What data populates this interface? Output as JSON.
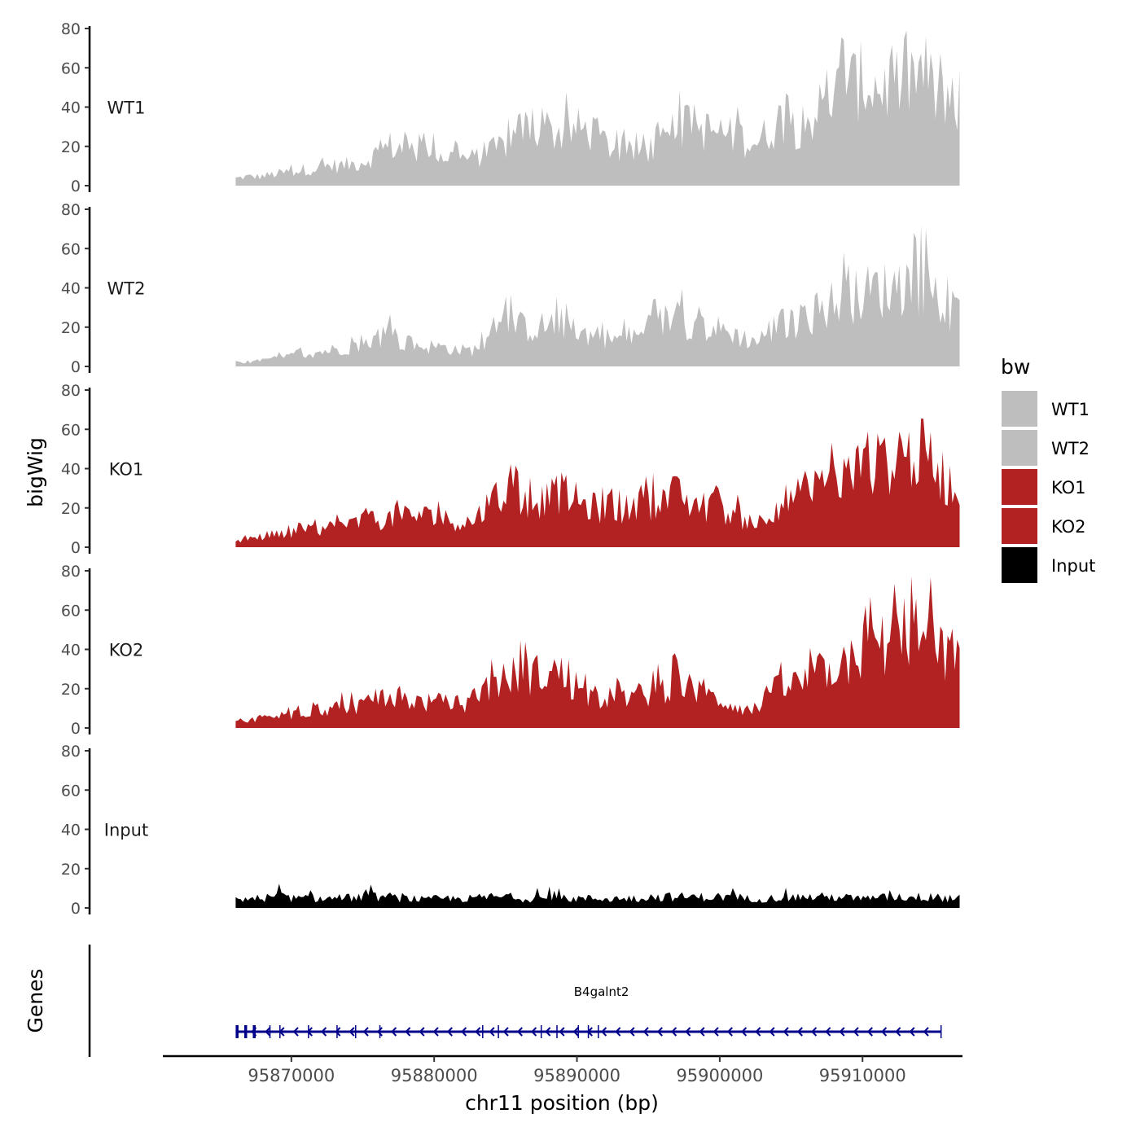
{
  "chart_data": {
    "type": "area",
    "y_title": "bigWig",
    "genes_title": "Genes",
    "x_title": "chr11 position (bp)",
    "x_ticks": [
      95870000,
      95880000,
      95890000,
      95900000,
      95910000
    ],
    "x_tick_labels": [
      "95870000",
      "95880000",
      "95890000",
      "95900000",
      "95910000"
    ],
    "xlim": [
      95861000,
      95917000
    ],
    "data_range": [
      95866100,
      95916800
    ],
    "y_ticks": [
      0,
      20,
      40,
      60,
      80
    ],
    "y_tick_labels": [
      "0",
      "20",
      "40",
      "60",
      "80"
    ],
    "ylim": [
      0,
      80
    ],
    "legend": {
      "title": "bw",
      "items": [
        {
          "label": "WT1",
          "color": "#bebebe"
        },
        {
          "label": "WT2",
          "color": "#bebebe"
        },
        {
          "label": "KO1",
          "color": "#b22222"
        },
        {
          "label": "KO2",
          "color": "#b22222"
        },
        {
          "label": "Input",
          "color": "#000000"
        }
      ]
    },
    "series": [
      {
        "name": "WT1",
        "color": "#bebebe",
        "values": [
          4,
          5,
          5,
          6,
          7,
          8,
          9,
          10,
          11,
          11,
          12,
          14,
          18,
          22,
          20,
          19,
          18,
          17,
          16,
          15,
          15,
          17,
          20,
          24,
          30,
          34,
          30,
          29,
          30,
          31,
          30,
          24,
          20,
          18,
          18,
          20,
          24,
          30,
          33,
          31,
          30,
          29,
          27,
          25,
          24,
          30,
          37,
          33,
          34,
          41,
          47,
          52,
          55,
          58,
          54,
          55,
          57,
          60,
          62,
          50,
          40,
          40
        ]
      },
      {
        "name": "WT2",
        "color": "#bebebe",
        "values": [
          2,
          2,
          3,
          4,
          5,
          6,
          7,
          8,
          9,
          10,
          11,
          12,
          16,
          19,
          13,
          12,
          11,
          11,
          10,
          9,
          9,
          13,
          20,
          24,
          22,
          21,
          22,
          24,
          23,
          19,
          17,
          16,
          15,
          16,
          17,
          21,
          25,
          27,
          24,
          22,
          21,
          20,
          18,
          15,
          14,
          20,
          23,
          24,
          26,
          30,
          34,
          37,
          38,
          40,
          43,
          42,
          44,
          45,
          46,
          37,
          30,
          30
        ]
      },
      {
        "name": "KO1",
        "color": "#b22222",
        "values": [
          3,
          4,
          5,
          6,
          7,
          8,
          9,
          10,
          11,
          12,
          13,
          14,
          15,
          16,
          17,
          18,
          17,
          16,
          15,
          14,
          14,
          22,
          26,
          28,
          26,
          25,
          26,
          30,
          29,
          24,
          22,
          21,
          20,
          21,
          22,
          24,
          27,
          29,
          25,
          23,
          21,
          20,
          18,
          14,
          13,
          21,
          25,
          27,
          28,
          32,
          35,
          38,
          40,
          42,
          45,
          47,
          49,
          50,
          51,
          46,
          35,
          35
        ]
      },
      {
        "name": "KO2",
        "color": "#b22222",
        "values": [
          3,
          4,
          5,
          6,
          7,
          8,
          9,
          10,
          11,
          12,
          12,
          13,
          14,
          15,
          16,
          15,
          14,
          14,
          13,
          13,
          13,
          20,
          25,
          28,
          30,
          29,
          30,
          31,
          27,
          18,
          17,
          17,
          16,
          17,
          18,
          19,
          22,
          24,
          21,
          19,
          17,
          15,
          13,
          10,
          9,
          19,
          22,
          24,
          25,
          29,
          33,
          36,
          38,
          42,
          45,
          47,
          50,
          51,
          52,
          47,
          37,
          37
        ]
      },
      {
        "name": "Input",
        "color": "#000000",
        "values": [
          5,
          6,
          6,
          7,
          7,
          6,
          6,
          6,
          6,
          6,
          7,
          7,
          7,
          7,
          6,
          6,
          5,
          6,
          6,
          6,
          6,
          7,
          7,
          7,
          6,
          6,
          6,
          6,
          6,
          6,
          6,
          6,
          6,
          6,
          6,
          7,
          7,
          7,
          7,
          7,
          7,
          7,
          7,
          6,
          6,
          6,
          7,
          7,
          7,
          7,
          7,
          7,
          6,
          6,
          6,
          7,
          7,
          7,
          7,
          7,
          6,
          6
        ]
      }
    ],
    "genes": [
      {
        "name": "B4galnt2",
        "start": 95866100,
        "end": 95915500,
        "strand": "-",
        "color": "#00008b",
        "exons": [
          95866200,
          95866800,
          95867400,
          95868500,
          95869200,
          95871200,
          95873200,
          95874500,
          95876200,
          95883400,
          95884500,
          95887500,
          95888600,
          95890100,
          95890800,
          95891500,
          95915500
        ]
      }
    ]
  }
}
